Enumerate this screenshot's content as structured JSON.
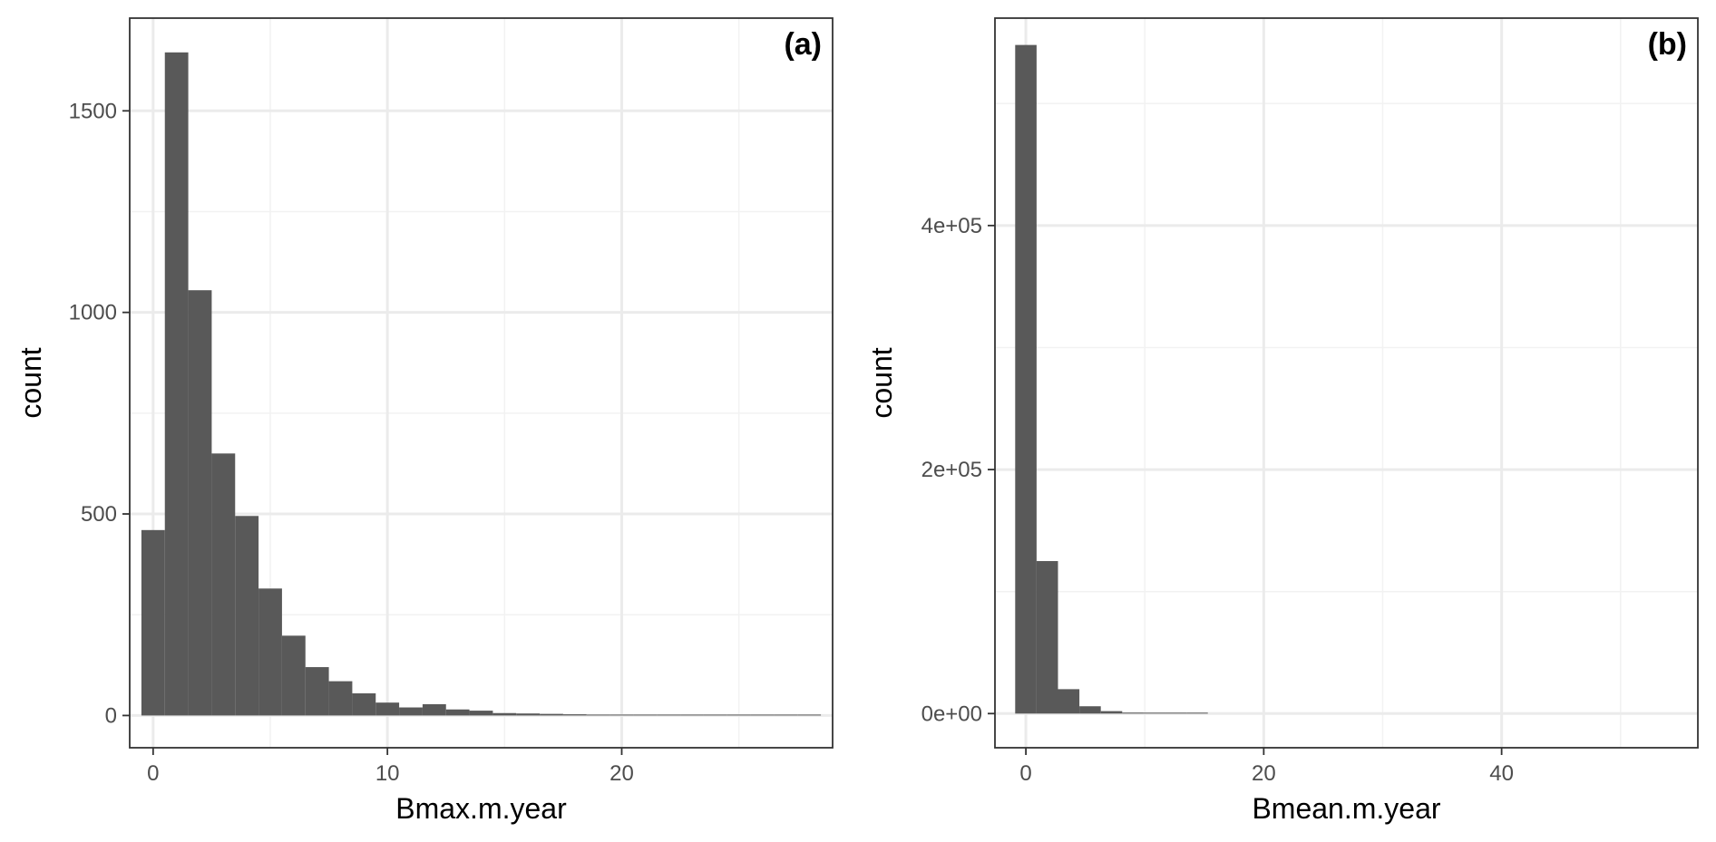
{
  "chart_data": [
    {
      "type": "bar",
      "panel_label": "(a)",
      "xlabel": "Bmax.m.year",
      "ylabel": "count",
      "bin_width": 1,
      "bin_centers": [
        0,
        1,
        2,
        3,
        4,
        5,
        6,
        7,
        8,
        9,
        10,
        11,
        12,
        13,
        14,
        15,
        16,
        17,
        18,
        19,
        20,
        21,
        22,
        23,
        24,
        25,
        26,
        27,
        28
      ],
      "values": [
        460,
        1645,
        1055,
        650,
        495,
        315,
        198,
        120,
        85,
        55,
        32,
        20,
        28,
        15,
        12,
        6,
        5,
        4,
        3,
        2,
        2,
        2,
        1,
        2,
        1,
        2,
        1,
        1,
        2
      ],
      "xlim": [
        -1,
        29
      ],
      "ylim": [
        -80,
        1730
      ],
      "xticks": [
        0,
        10,
        20
      ],
      "yticks": [
        0,
        500,
        1000,
        1500
      ],
      "xtick_labels": [
        "0",
        "10",
        "20"
      ],
      "ytick_labels": [
        "0",
        "500",
        "1000",
        "1500"
      ],
      "grid": true
    },
    {
      "type": "bar",
      "panel_label": "(b)",
      "xlabel": "Bmean.m.year",
      "ylabel": "count",
      "bin_width": 1.8,
      "bin_centers": [
        0,
        1.8,
        3.6,
        5.4,
        7.2,
        9.0,
        10.8,
        12.6,
        14.4
      ],
      "values": [
        548000,
        125000,
        20000,
        6000,
        2000,
        800,
        400,
        200,
        100
      ],
      "xlim": [
        -2.6,
        56.5
      ],
      "ylim": [
        -28000,
        570000
      ],
      "xticks": [
        0,
        20,
        40
      ],
      "yticks": [
        0,
        200000,
        400000
      ],
      "xtick_labels": [
        "0",
        "20",
        "40"
      ],
      "ytick_labels": [
        "0e+00",
        "2e+05",
        "4e+05"
      ],
      "grid": true
    }
  ],
  "colors": {
    "bar": "#595959",
    "grid_major": "#ebebeb",
    "grid_minor": "#f2f2f2",
    "panel_border": "#333333",
    "tick_text": "#4d4d4d"
  }
}
